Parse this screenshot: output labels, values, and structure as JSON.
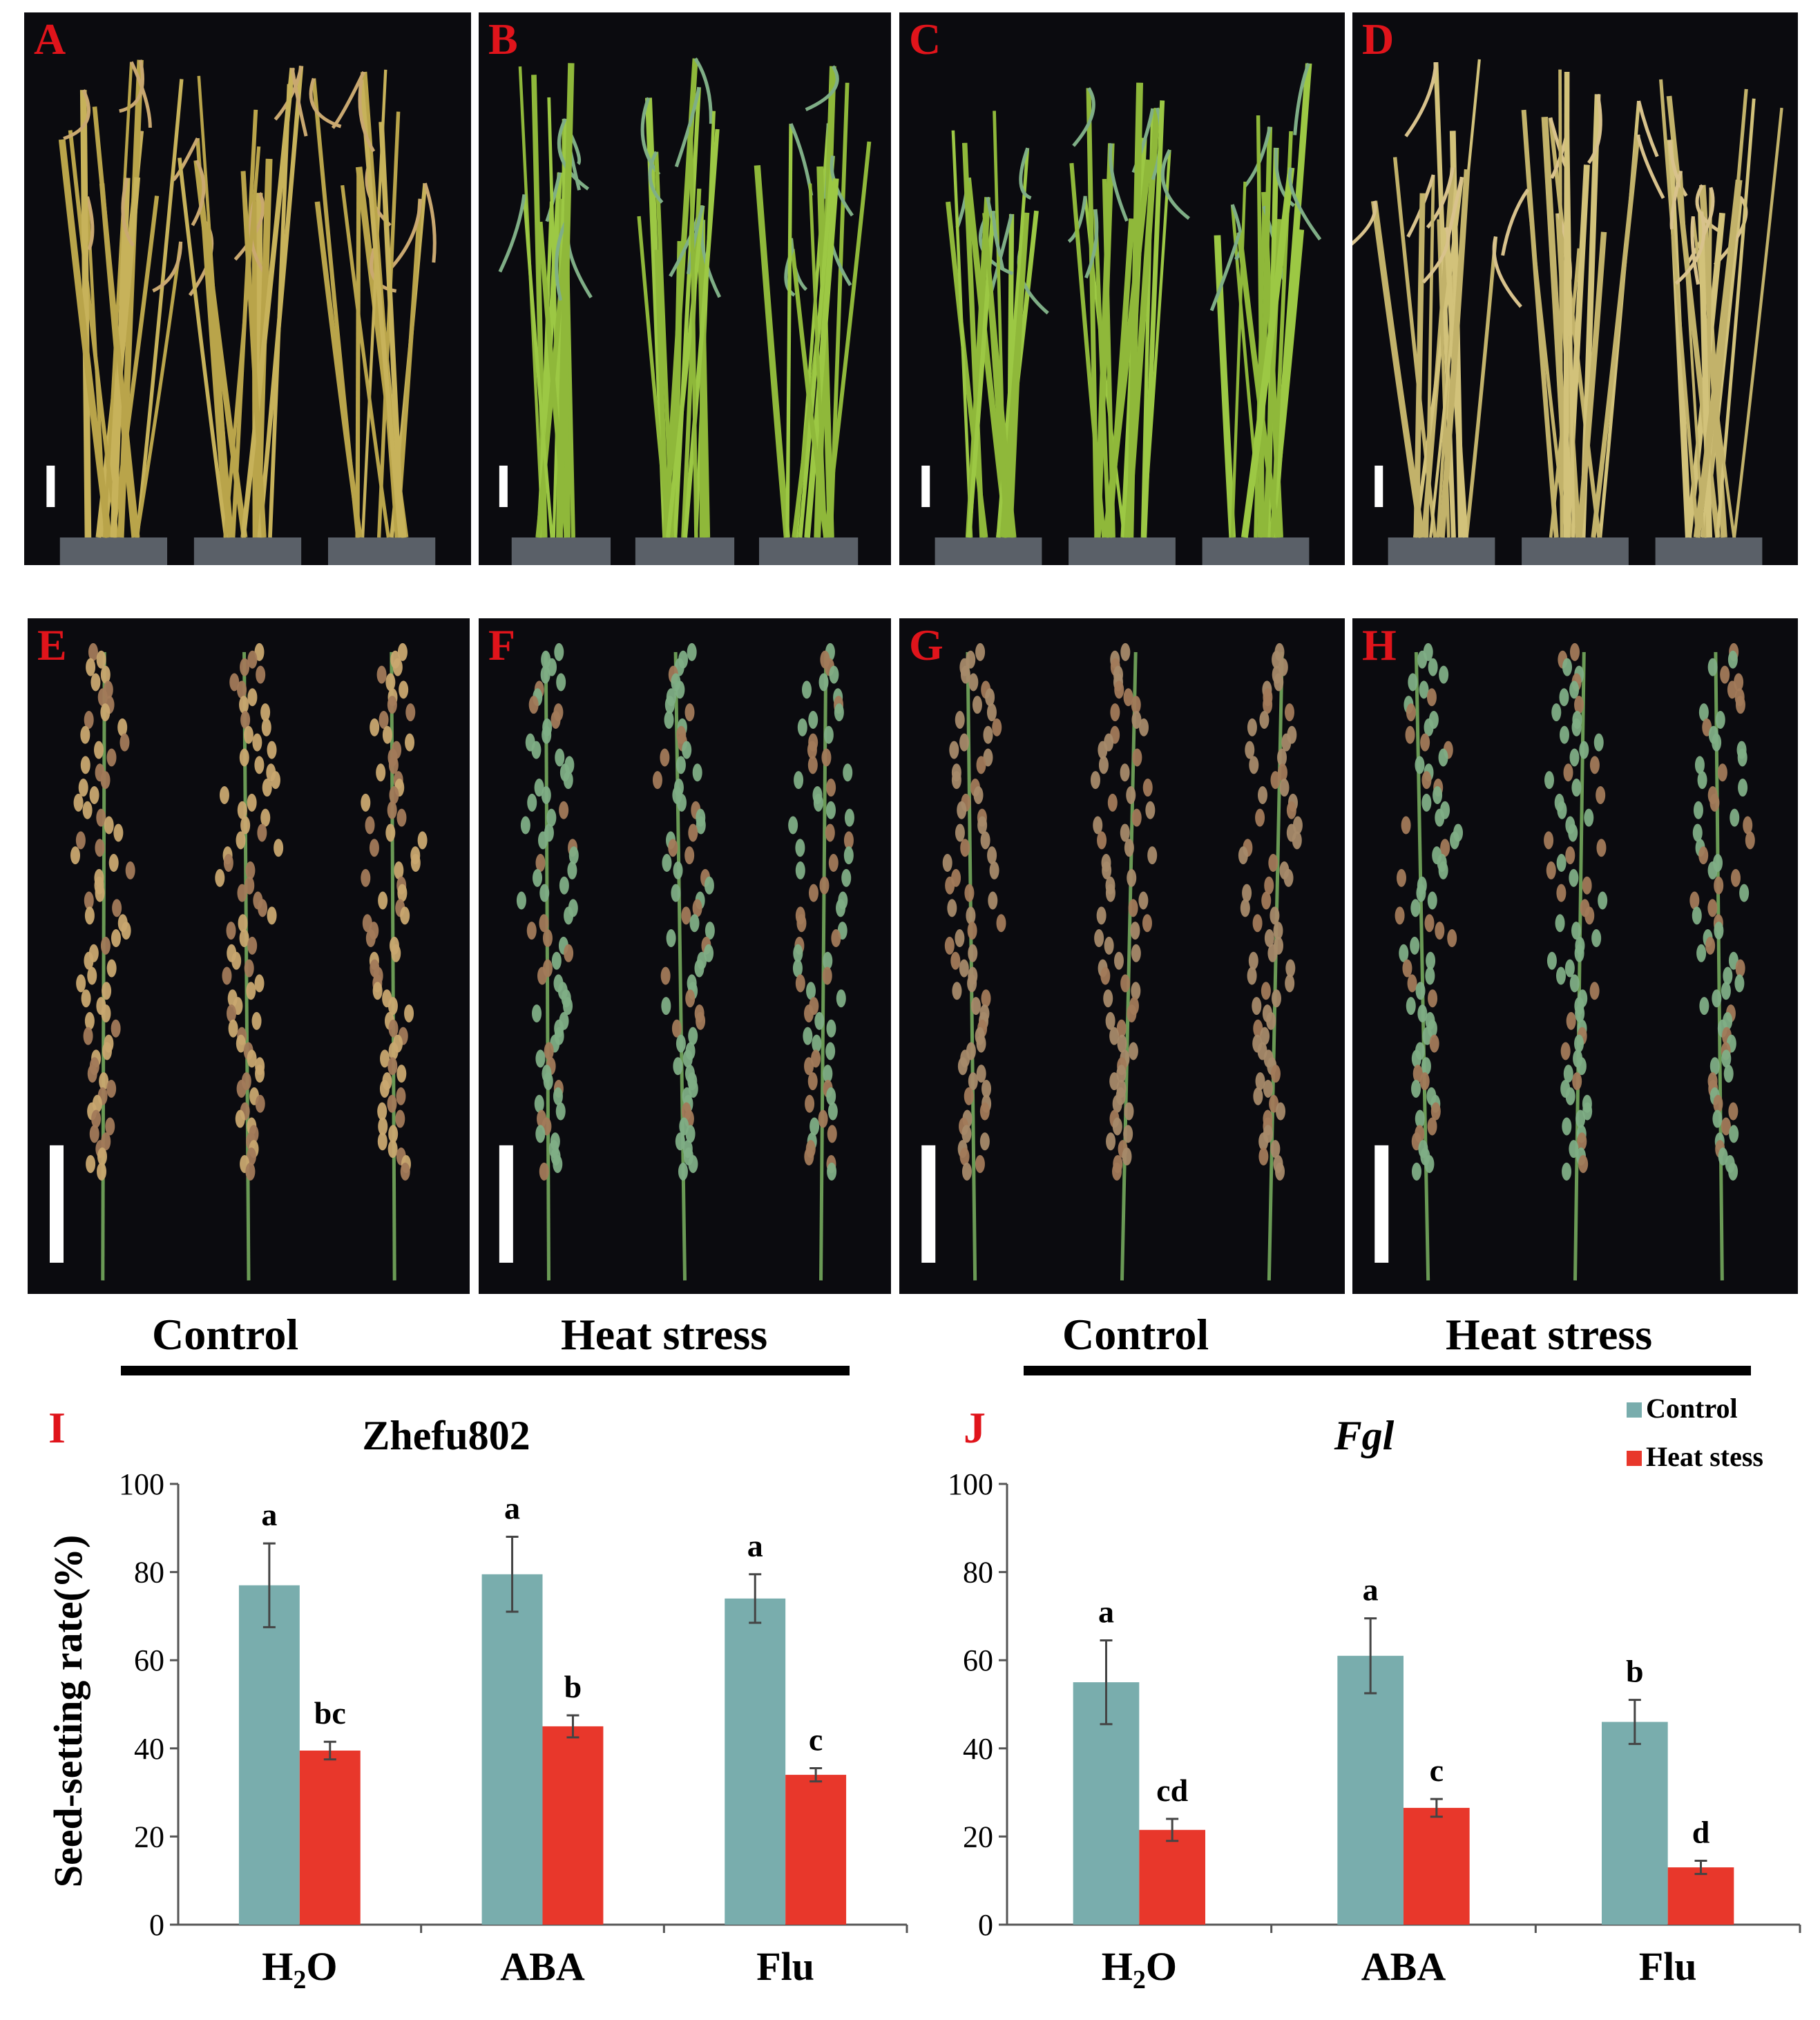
{
  "panels": {
    "top": [
      {
        "label": "A",
        "tone": "ripe"
      },
      {
        "label": "B",
        "tone": "green"
      },
      {
        "label": "C",
        "tone": "green"
      },
      {
        "label": "D",
        "tone": "ripe-pale"
      }
    ],
    "middle": [
      {
        "label": "E",
        "tone": "ripe"
      },
      {
        "label": "F",
        "tone": "green"
      },
      {
        "label": "G",
        "tone": "mixed"
      },
      {
        "label": "H",
        "tone": "green"
      }
    ]
  },
  "group_captions": {
    "left_control": "Control",
    "left_heat": "Heat stress",
    "right_control": "Control",
    "right_heat": "Heat stress"
  },
  "colors": {
    "control": "#79adad",
    "heat": "#e8372b",
    "panel_label": "#e0141b",
    "panel_bg": "#0b0b0f"
  },
  "chart_data": [
    {
      "type": "bar",
      "panel": "I",
      "title": "Zhefu802",
      "title_italic": false,
      "ylabel": "Seed-setting rate(%)",
      "xlabel": "",
      "ylim": [
        0,
        100
      ],
      "yticks": [
        0,
        20,
        40,
        60,
        80,
        100
      ],
      "categories": [
        "H2O",
        "ABA",
        "Flu"
      ],
      "series": [
        {
          "name": "Control",
          "values": [
            77,
            79.5,
            74
          ],
          "errors": [
            9.5,
            8.5,
            5.5
          ],
          "letters": [
            "a",
            "a",
            "a"
          ]
        },
        {
          "name": "Heat stess",
          "values": [
            39.5,
            45,
            34
          ],
          "errors": [
            2,
            2.5,
            1.5
          ],
          "letters": [
            "bc",
            "b",
            "c"
          ]
        }
      ],
      "legend": false
    },
    {
      "type": "bar",
      "panel": "J",
      "title": "Fgl",
      "title_italic": true,
      "ylabel": "",
      "xlabel": "",
      "ylim": [
        0,
        100
      ],
      "yticks": [
        0,
        20,
        40,
        60,
        80,
        100
      ],
      "categories": [
        "H2O",
        "ABA",
        "Flu"
      ],
      "series": [
        {
          "name": "Control",
          "values": [
            55,
            61,
            46
          ],
          "errors": [
            9.5,
            8.5,
            5
          ],
          "letters": [
            "a",
            "a",
            "b"
          ]
        },
        {
          "name": "Heat stess",
          "values": [
            21.5,
            26.5,
            13
          ],
          "errors": [
            2.5,
            2,
            1.5
          ],
          "letters": [
            "cd",
            "c",
            "d"
          ]
        }
      ],
      "legend": true,
      "legend_position": "top-right"
    }
  ]
}
